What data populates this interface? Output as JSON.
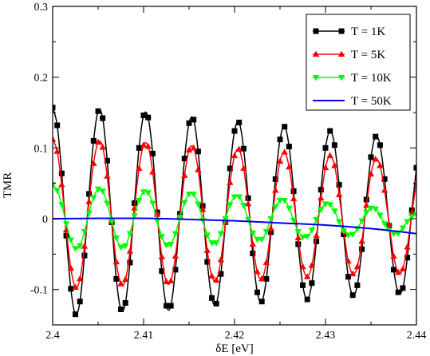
{
  "chart_data": {
    "type": "line",
    "title": "",
    "xlabel": "δE [eV]",
    "ylabel": "TMR",
    "xlim": [
      2.4,
      2.44
    ],
    "ylim": [
      -0.15,
      0.3
    ],
    "x_ticks": [
      {
        "value": 2.4,
        "label": "2.4"
      },
      {
        "value": 2.41,
        "label": "2.41"
      },
      {
        "value": 2.42,
        "label": "2.42"
      },
      {
        "value": 2.43,
        "label": "2.43"
      },
      {
        "value": 2.44,
        "label": "2.44"
      }
    ],
    "y_ticks": [
      {
        "value": -0.1,
        "label": "-0.1"
      },
      {
        "value": 0,
        "label": "0"
      },
      {
        "value": 0.1,
        "label": "0.1"
      },
      {
        "value": 0.2,
        "label": "0.2"
      },
      {
        "value": 0.3,
        "label": "0.3"
      }
    ],
    "grid": false,
    "legend_position": "top-right",
    "series": [
      {
        "name": "T = 1K",
        "color": "#000000",
        "marker": "square",
        "x": [
          2.4,
          2.4005,
          2.401,
          2.4015,
          2.402,
          2.4025,
          2.403,
          2.4035,
          2.404,
          2.4045,
          2.405,
          2.4055,
          2.406,
          2.4065,
          2.407,
          2.4075,
          2.408,
          2.4085,
          2.409,
          2.4095,
          2.41,
          2.4105,
          2.411,
          2.4115,
          2.412,
          2.4125,
          2.413,
          2.4135,
          2.414,
          2.4145,
          2.415,
          2.4155,
          2.416,
          2.4165,
          2.417,
          2.4175,
          2.418,
          2.4185,
          2.419,
          2.4195,
          2.42,
          2.4205,
          2.421,
          2.4215,
          2.422,
          2.4225,
          2.423,
          2.4235,
          2.424,
          2.4245,
          2.425,
          2.4255,
          2.426,
          2.4265,
          2.427,
          2.4275,
          2.428,
          2.4285,
          2.429,
          2.4295,
          2.43,
          2.4305,
          2.431,
          2.4315,
          2.432,
          2.4325,
          2.433,
          2.4335,
          2.434,
          2.4345,
          2.435,
          2.4355,
          2.436,
          2.4365,
          2.437,
          2.4375,
          2.438,
          2.4385,
          2.439,
          2.4395,
          2.44
        ],
        "y": [
          0.157,
          0.132,
          0.064,
          -0.024,
          -0.099,
          -0.135,
          -0.117,
          -0.052,
          0.035,
          0.11,
          0.152,
          0.142,
          0.082,
          -0.005,
          -0.085,
          -0.128,
          -0.119,
          -0.062,
          0.022,
          0.1,
          0.146,
          0.143,
          0.092,
          0.009,
          -0.074,
          -0.123,
          -0.123,
          -0.072,
          0.007,
          0.085,
          0.135,
          0.14,
          0.095,
          0.018,
          -0.061,
          -0.112,
          -0.12,
          -0.078,
          -0.005,
          0.071,
          0.124,
          0.136,
          0.099,
          0.029,
          -0.049,
          -0.104,
          -0.117,
          -0.085,
          -0.019,
          0.056,
          0.112,
          0.13,
          0.102,
          0.039,
          -0.036,
          -0.094,
          -0.114,
          -0.091,
          -0.032,
          0.041,
          0.1,
          0.124,
          0.104,
          0.048,
          -0.022,
          -0.082,
          -0.108,
          -0.094,
          -0.043,
          0.027,
          0.087,
          0.116,
          0.104,
          0.056,
          -0.01,
          -0.072,
          -0.104,
          -0.098,
          -0.055,
          0.012,
          0.072
        ]
      },
      {
        "name": "T = 5K",
        "color": "#ff0000",
        "marker": "triangle-up",
        "x": [
          2.4,
          2.4005,
          2.401,
          2.4015,
          2.402,
          2.4025,
          2.403,
          2.4035,
          2.404,
          2.4045,
          2.405,
          2.4055,
          2.406,
          2.4065,
          2.407,
          2.4075,
          2.408,
          2.4085,
          2.409,
          2.4095,
          2.41,
          2.4105,
          2.411,
          2.4115,
          2.412,
          2.4125,
          2.413,
          2.4135,
          2.414,
          2.4145,
          2.415,
          2.4155,
          2.416,
          2.4165,
          2.417,
          2.4175,
          2.418,
          2.4185,
          2.419,
          2.4195,
          2.42,
          2.4205,
          2.421,
          2.4215,
          2.422,
          2.4225,
          2.423,
          2.4235,
          2.424,
          2.4245,
          2.425,
          2.4255,
          2.426,
          2.4265,
          2.427,
          2.4275,
          2.428,
          2.4285,
          2.429,
          2.4295,
          2.43,
          2.4305,
          2.431,
          2.4315,
          2.432,
          2.4325,
          2.433,
          2.4335,
          2.434,
          2.4345,
          2.435,
          2.4355,
          2.436,
          2.4365,
          2.437,
          2.4375,
          2.438,
          2.4385,
          2.439,
          2.4395,
          2.44
        ],
        "y": [
          0.112,
          0.095,
          0.048,
          -0.016,
          -0.07,
          -0.097,
          -0.085,
          -0.039,
          0.024,
          0.078,
          0.108,
          0.101,
          0.06,
          -0.003,
          -0.061,
          -0.092,
          -0.086,
          -0.046,
          0.015,
          0.071,
          0.104,
          0.102,
          0.066,
          0.006,
          -0.054,
          -0.089,
          -0.088,
          -0.053,
          0.004,
          0.061,
          0.097,
          0.1,
          0.069,
          0.013,
          -0.045,
          -0.081,
          -0.087,
          -0.058,
          -0.005,
          0.051,
          0.089,
          0.098,
          0.071,
          0.021,
          -0.036,
          -0.075,
          -0.085,
          -0.062,
          -0.014,
          0.04,
          0.081,
          0.094,
          0.073,
          0.028,
          -0.027,
          -0.068,
          -0.082,
          -0.066,
          -0.024,
          0.029,
          0.072,
          0.089,
          0.075,
          0.034,
          -0.017,
          -0.06,
          -0.078,
          -0.068,
          -0.032,
          0.019,
          0.063,
          0.084,
          0.075,
          0.04,
          -0.008,
          -0.053,
          -0.076,
          -0.071,
          -0.04,
          0.008,
          0.052
        ]
      },
      {
        "name": "T = 10K",
        "color": "#00ff00",
        "marker": "triangle-down",
        "x": [
          2.4,
          2.4005,
          2.401,
          2.4015,
          2.402,
          2.4025,
          2.403,
          2.4035,
          2.404,
          2.4045,
          2.405,
          2.4055,
          2.406,
          2.4065,
          2.407,
          2.4075,
          2.408,
          2.4085,
          2.409,
          2.4095,
          2.41,
          2.4105,
          2.411,
          2.4115,
          2.412,
          2.4125,
          2.413,
          2.4135,
          2.414,
          2.4145,
          2.415,
          2.4155,
          2.416,
          2.4165,
          2.417,
          2.4175,
          2.418,
          2.4185,
          2.419,
          2.4195,
          2.42,
          2.4205,
          2.421,
          2.4215,
          2.422,
          2.4225,
          2.423,
          2.4235,
          2.424,
          2.4245,
          2.425,
          2.4255,
          2.426,
          2.4265,
          2.427,
          2.4275,
          2.428,
          2.4285,
          2.429,
          2.4295,
          2.43,
          2.4305,
          2.431,
          2.4315,
          2.432,
          2.4325,
          2.433,
          2.4335,
          2.434,
          2.4345,
          2.435,
          2.4355,
          2.436,
          2.4365,
          2.437,
          2.4375,
          2.438,
          2.4385,
          2.439,
          2.4395,
          2.44
        ],
        "y": [
          0.048,
          0.04,
          0.02,
          -0.007,
          -0.03,
          -0.042,
          -0.038,
          -0.018,
          0.008,
          0.03,
          0.042,
          0.039,
          0.022,
          -0.004,
          -0.027,
          -0.04,
          -0.038,
          -0.021,
          0.004,
          0.026,
          0.038,
          0.037,
          0.022,
          -0.003,
          -0.025,
          -0.037,
          -0.036,
          -0.021,
          0.002,
          0.023,
          0.035,
          0.035,
          0.021,
          -0.002,
          -0.023,
          -0.034,
          -0.034,
          -0.021,
          0,
          0.02,
          0.031,
          0.031,
          0.019,
          -0.001,
          -0.02,
          -0.029,
          -0.029,
          -0.018,
          0,
          0.017,
          0.026,
          0.026,
          0.015,
          -0.002,
          -0.018,
          -0.026,
          -0.025,
          -0.016,
          -0.001,
          0.013,
          0.021,
          0.02,
          0.011,
          -0.004,
          -0.017,
          -0.023,
          -0.022,
          -0.014,
          -0.003,
          0.009,
          0.015,
          0.014,
          0.005,
          -0.007,
          -0.016,
          -0.021,
          -0.02,
          -0.013,
          -0.004,
          0.003,
          0.006
        ]
      },
      {
        "name": "T = 50K",
        "color": "#0000ff",
        "marker": "none",
        "x": [
          2.4,
          2.405,
          2.41,
          2.415,
          2.42,
          2.425,
          2.43,
          2.435,
          2.44
        ],
        "y": [
          0.0,
          0.0005,
          0.0005,
          -0.001,
          -0.003,
          -0.006,
          -0.009,
          -0.014,
          -0.021
        ]
      }
    ]
  }
}
